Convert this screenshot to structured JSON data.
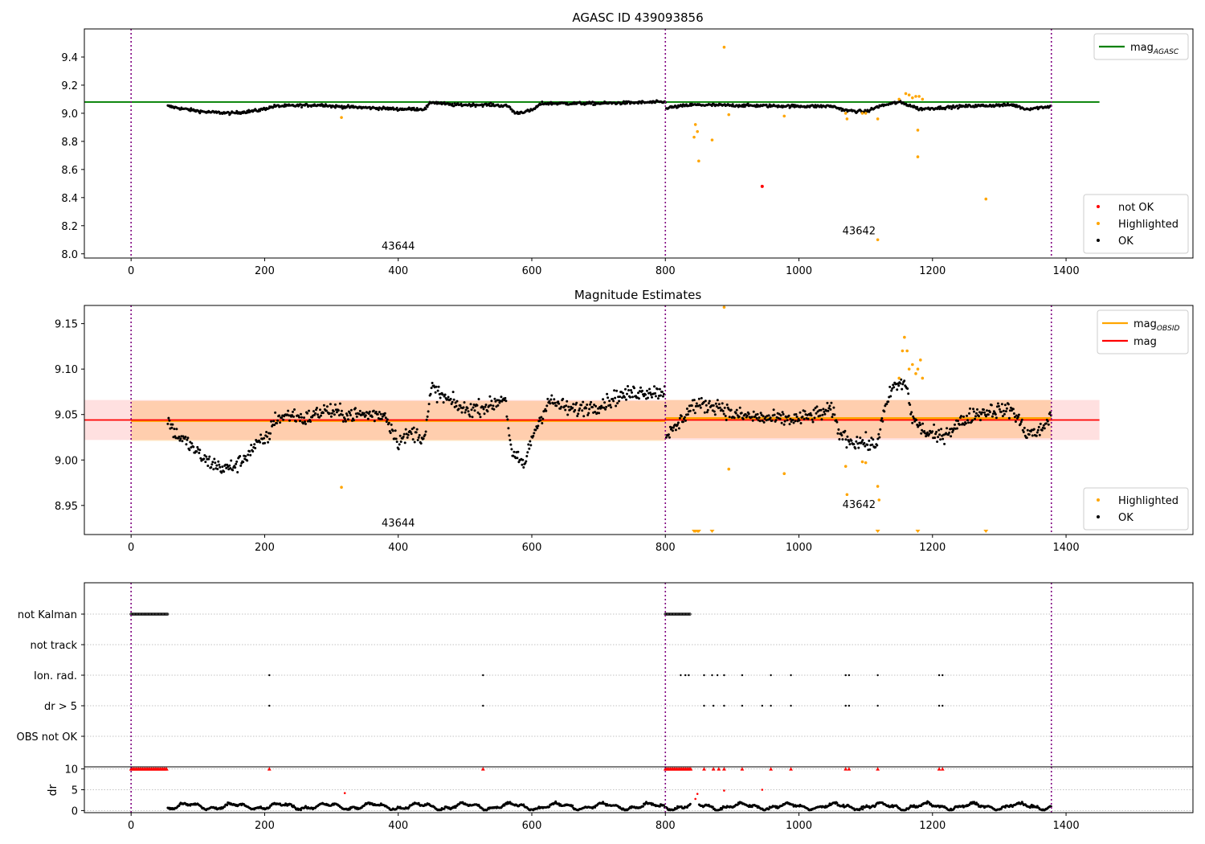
{
  "chart_data": [
    {
      "type": "scatter",
      "title": "AGASC ID 439093856",
      "xlim": [
        -70,
        1590
      ],
      "ylim": [
        7.97,
        9.6
      ],
      "x_ticks": [
        0,
        200,
        400,
        600,
        800,
        1000,
        1200,
        1400
      ],
      "y_ticks": [
        8.0,
        8.2,
        8.4,
        8.6,
        8.8,
        9.0,
        9.2,
        9.4
      ],
      "y_tick_labels": [
        "8.0",
        "8.2",
        "8.4",
        "8.6",
        "8.8",
        "9.0",
        "9.2",
        "9.4"
      ],
      "obsid_boundaries": [
        0,
        800,
        1378
      ],
      "obsid_labels": [
        {
          "text": "43644",
          "x": 400,
          "y": 8.03
        },
        {
          "text": "43642",
          "x": 1090,
          "y": 8.14
        }
      ],
      "lines": [
        {
          "name_main": "mag",
          "name_sub": "AGASC",
          "color": "#008000",
          "y": 9.08,
          "x": [
            -70,
            1450
          ]
        }
      ],
      "legend_lines_placement": "upper-right",
      "legend_points_placement": "lower-right",
      "legend_points": [
        {
          "name": "not OK",
          "color": "#ff0000"
        },
        {
          "name": "Highlighted",
          "color": "#ffa500"
        },
        {
          "name": "OK",
          "color": "#000000"
        }
      ],
      "ok_trend": [
        [
          55,
          9.05
        ],
        [
          80,
          9.03
        ],
        [
          110,
          9.01
        ],
        [
          150,
          9.0
        ],
        [
          190,
          9.02
        ],
        [
          215,
          9.05
        ],
        [
          290,
          9.06
        ],
        [
          300,
          9.05
        ],
        [
          400,
          9.03
        ],
        [
          440,
          9.03
        ],
        [
          450,
          9.08
        ],
        [
          480,
          9.06
        ],
        [
          540,
          9.06
        ],
        [
          565,
          9.05
        ],
        [
          575,
          9.0
        ],
        [
          600,
          9.02
        ],
        [
          615,
          9.07
        ],
        [
          700,
          9.07
        ],
        [
          800,
          9.08
        ],
        [
          801,
          9.04
        ],
        [
          805,
          9.04
        ],
        [
          840,
          9.06
        ],
        [
          1000,
          9.05
        ],
        [
          1050,
          9.05
        ],
        [
          1070,
          9.02
        ],
        [
          1100,
          9.01
        ],
        [
          1120,
          9.05
        ],
        [
          1150,
          9.08
        ],
        [
          1170,
          9.05
        ],
        [
          1180,
          9.03
        ],
        [
          1250,
          9.05
        ],
        [
          1320,
          9.06
        ],
        [
          1340,
          9.03
        ],
        [
          1378,
          9.05
        ]
      ],
      "ok_x_range": [
        55,
        1378
      ],
      "highlighted_points": [
        [
          315,
          8.97
        ],
        [
          843,
          8.83
        ],
        [
          845,
          8.92
        ],
        [
          848,
          8.87
        ],
        [
          850,
          8.66
        ],
        [
          870,
          8.81
        ],
        [
          888,
          9.47
        ],
        [
          895,
          8.99
        ],
        [
          978,
          8.98
        ],
        [
          1070,
          9.0
        ],
        [
          1072,
          8.96
        ],
        [
          1095,
          9.0
        ],
        [
          1100,
          9.0
        ],
        [
          1118,
          8.1
        ],
        [
          1118,
          8.96
        ],
        [
          1150,
          9.1
        ],
        [
          1160,
          9.14
        ],
        [
          1165,
          9.13
        ],
        [
          1170,
          9.11
        ],
        [
          1175,
          9.12
        ],
        [
          1178,
          8.88
        ],
        [
          1180,
          9.12
        ],
        [
          1178,
          8.69
        ],
        [
          1185,
          9.1
        ],
        [
          1280,
          8.39
        ]
      ],
      "not_ok_points": [
        [
          945,
          8.48
        ]
      ]
    },
    {
      "type": "scatter",
      "title": "Magnitude Estimates",
      "xlim": [
        -70,
        1590
      ],
      "ylim": [
        8.918,
        9.17
      ],
      "x_ticks": [
        0,
        200,
        400,
        600,
        800,
        1000,
        1200,
        1400
      ],
      "y_ticks": [
        8.95,
        9.0,
        9.05,
        9.1,
        9.15
      ],
      "y_tick_labels": [
        "8.95",
        "9.00",
        "9.05",
        "9.10",
        "9.15"
      ],
      "obsid_boundaries": [
        0,
        800,
        1378
      ],
      "obsid_labels": [
        {
          "text": "43644",
          "x": 400,
          "y": 8.927
        },
        {
          "text": "43642",
          "x": 1090,
          "y": 8.947
        }
      ],
      "lines": [
        {
          "name_main": "mag",
          "name_sub": "OBSID",
          "color": "#ffa500",
          "segments": [
            {
              "x": [
                0,
                800
              ],
              "y": 9.043,
              "band": [
                9.021,
                9.065
              ]
            },
            {
              "x": [
                800,
                1378
              ],
              "y": 9.046,
              "band": [
                9.024,
                9.066
              ]
            }
          ]
        },
        {
          "name_main": "mag",
          "name_sub": "",
          "color": "#ff0000",
          "y": 9.044,
          "band": [
            9.022,
            9.066
          ],
          "x": [
            -70,
            1450
          ]
        }
      ],
      "legend_lines_placement": "upper-right",
      "legend_points_placement": "lower-right",
      "legend_points": [
        {
          "name": "Highlighted",
          "color": "#ffa500"
        },
        {
          "name": "OK",
          "color": "#000000"
        }
      ],
      "ok_trend": [
        [
          55,
          9.045
        ],
        [
          65,
          9.03
        ],
        [
          90,
          9.015
        ],
        [
          110,
          9.0
        ],
        [
          140,
          8.99
        ],
        [
          160,
          8.995
        ],
        [
          185,
          9.015
        ],
        [
          205,
          9.025
        ],
        [
          215,
          9.045
        ],
        [
          240,
          9.05
        ],
        [
          260,
          9.045
        ],
        [
          290,
          9.055
        ],
        [
          320,
          9.05
        ],
        [
          350,
          9.05
        ],
        [
          380,
          9.05
        ],
        [
          400,
          9.02
        ],
        [
          420,
          9.03
        ],
        [
          440,
          9.025
        ],
        [
          450,
          9.08
        ],
        [
          465,
          9.07
        ],
        [
          500,
          9.055
        ],
        [
          540,
          9.06
        ],
        [
          560,
          9.07
        ],
        [
          570,
          9.005
        ],
        [
          590,
          8.995
        ],
        [
          600,
          9.025
        ],
        [
          625,
          9.065
        ],
        [
          660,
          9.055
        ],
        [
          700,
          9.06
        ],
        [
          730,
          9.07
        ],
        [
          760,
          9.075
        ],
        [
          800,
          9.075
        ],
        [
          801,
          9.03
        ],
        [
          810,
          9.03
        ],
        [
          840,
          9.06
        ],
        [
          880,
          9.06
        ],
        [
          900,
          9.05
        ],
        [
          960,
          9.045
        ],
        [
          1000,
          9.045
        ],
        [
          1050,
          9.055
        ],
        [
          1060,
          9.03
        ],
        [
          1080,
          9.02
        ],
        [
          1095,
          9.02
        ],
        [
          1115,
          9.015
        ],
        [
          1125,
          9.045
        ],
        [
          1140,
          9.08
        ],
        [
          1160,
          9.085
        ],
        [
          1170,
          9.045
        ],
        [
          1190,
          9.03
        ],
        [
          1210,
          9.025
        ],
        [
          1230,
          9.035
        ],
        [
          1260,
          9.05
        ],
        [
          1290,
          9.055
        ],
        [
          1320,
          9.055
        ],
        [
          1340,
          9.03
        ],
        [
          1360,
          9.03
        ],
        [
          1378,
          9.05
        ]
      ],
      "ok_x_range": [
        55,
        1378
      ],
      "highlighted_points": [
        [
          315,
          8.97
        ],
        [
          895,
          8.99
        ],
        [
          978,
          8.985
        ],
        [
          1070,
          8.993
        ],
        [
          1072,
          8.962
        ],
        [
          1095,
          8.998
        ],
        [
          1100,
          8.997
        ],
        [
          1118,
          8.971
        ],
        [
          1120,
          8.956
        ],
        [
          1150,
          9.09
        ],
        [
          1155,
          9.12
        ],
        [
          1158,
          9.135
        ],
        [
          1162,
          9.12
        ],
        [
          1165,
          9.1
        ],
        [
          1170,
          9.105
        ],
        [
          1175,
          9.095
        ],
        [
          1178,
          9.1
        ],
        [
          1182,
          9.11
        ],
        [
          1185,
          9.09
        ],
        [
          888,
          9.168
        ]
      ],
      "clipped_low_x": [
        843,
        845,
        848,
        850,
        870,
        1118,
        1178,
        1280
      ]
    },
    {
      "type": "scatter",
      "title": "",
      "xlim": [
        -70,
        1590
      ],
      "x_ticks": [
        0,
        200,
        400,
        600,
        800,
        1000,
        1200,
        1400
      ],
      "obsid_boundaries": [
        0,
        800,
        1378
      ],
      "flag_rows": [
        "not Kalman",
        "not track",
        "Ion. rad.",
        "dr > 5",
        "OBS not OK"
      ],
      "flags": {
        "not Kalman": {
          "ranges": [
            [
              0,
              55
            ],
            [
              800,
              838
            ]
          ]
        },
        "not track": {
          "ranges": []
        },
        "Ion. rad.": {
          "x": [
            207,
            527,
            823,
            830,
            835,
            858,
            870,
            878,
            888,
            915,
            958,
            988,
            1070,
            1075,
            1118,
            1210,
            1215
          ]
        },
        "dr > 5": {
          "x": [
            207,
            527,
            858,
            872,
            888,
            915,
            945,
            958,
            988,
            1070,
            1075,
            1118,
            1210,
            1215
          ]
        },
        "OBS not OK": {
          "x": []
        }
      },
      "dr_axis": {
        "ylabel": "dr",
        "ylim": [
          -0.5,
          10.5
        ],
        "y_ticks": [
          0,
          5,
          10
        ],
        "y_tick_labels": [
          "0",
          "5",
          "10"
        ],
        "capped_at": 10,
        "capped_ranges": [
          [
            0,
            55
          ],
          [
            800,
            838
          ]
        ],
        "capped_x": [
          207,
          527,
          858,
          872,
          880,
          888,
          915,
          958,
          988,
          1070,
          1075,
          1118,
          1210,
          1215
        ],
        "extra_points": [
          [
            320,
            4.2
          ],
          [
            845,
            2.8
          ],
          [
            848,
            4.0
          ],
          [
            888,
            4.8
          ],
          [
            945,
            5.0
          ]
        ],
        "ok_x_range": [
          55,
          1378
        ],
        "ok_mean": 1.3
      }
    }
  ]
}
